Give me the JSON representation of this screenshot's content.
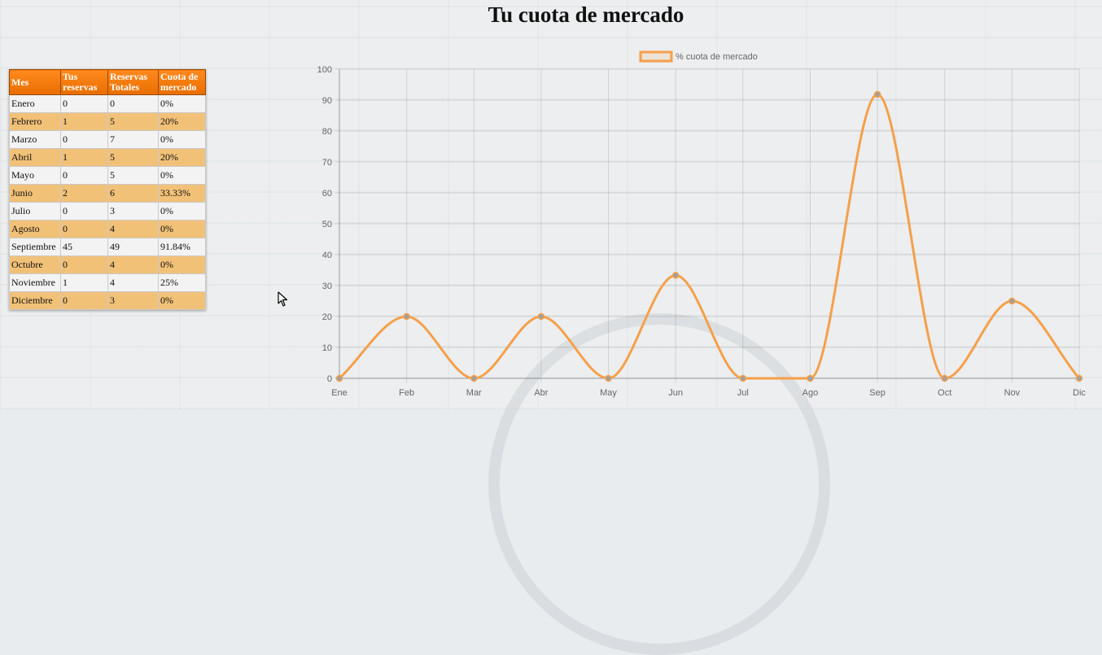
{
  "page": {
    "title": "Tu cuota de mercado"
  },
  "table": {
    "headers": [
      "Mes",
      "Tus reservas",
      "Reservas Totales",
      "Cuota de mercado"
    ],
    "rows": [
      [
        "Enero",
        "0",
        "0",
        "0%"
      ],
      [
        "Febrero",
        "1",
        "5",
        "20%"
      ],
      [
        "Marzo",
        "0",
        "7",
        "0%"
      ],
      [
        "Abril",
        "1",
        "5",
        "20%"
      ],
      [
        "Mayo",
        "0",
        "5",
        "0%"
      ],
      [
        "Junio",
        "2",
        "6",
        "33.33%"
      ],
      [
        "Julio",
        "0",
        "3",
        "0%"
      ],
      [
        "Agosto",
        "0",
        "4",
        "0%"
      ],
      [
        "Septiembre",
        "45",
        "49",
        "91.84%"
      ],
      [
        "Octubre",
        "0",
        "4",
        "0%"
      ],
      [
        "Noviembre",
        "1",
        "4",
        "25%"
      ],
      [
        "Diciembre",
        "0",
        "3",
        "0%"
      ]
    ]
  },
  "chart_data": {
    "type": "line",
    "categories": [
      "Ene",
      "Feb",
      "Mar",
      "Abr",
      "May",
      "Jun",
      "Jul",
      "Ago",
      "Sep",
      "Oct",
      "Nov",
      "Dic"
    ],
    "series": [
      {
        "name": "% cuota de mercado",
        "values": [
          0,
          20,
          0,
          20,
          0,
          33.33,
          0,
          0,
          91.84,
          0,
          25,
          0
        ],
        "color": "#f5a04a"
      }
    ],
    "yticks": [
      "0",
      "10",
      "20",
      "30",
      "40",
      "50",
      "60",
      "70",
      "80",
      "90",
      "100"
    ],
    "ylim": [
      0,
      100
    ],
    "grid": true,
    "legend": "top-center",
    "smooth": true
  },
  "colors": {
    "header_orange": "#ff8a1e",
    "row_alt": "#f2c178",
    "line": "#f5a04a",
    "point": "#a0a0a0"
  }
}
